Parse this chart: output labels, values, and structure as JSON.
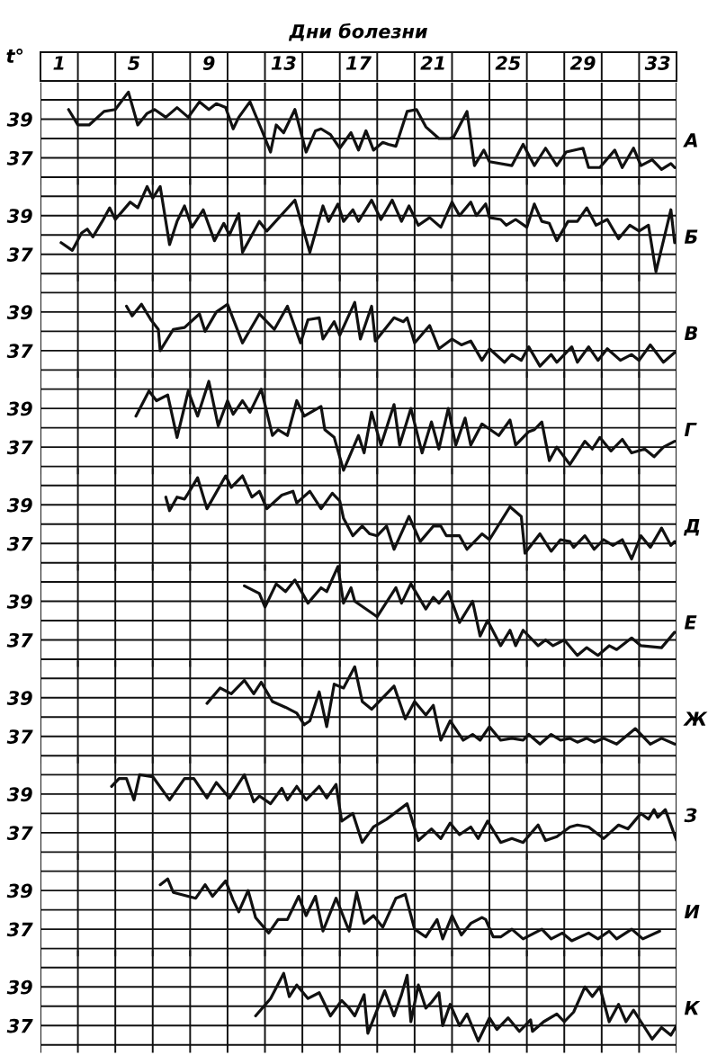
{
  "chart_data": [
    {
      "type": "line",
      "color": "#111111",
      "xlabel": "Дни болезни",
      "ylabel": "t°",
      "xticks": [
        {
          "value": 0,
          "label": null
        },
        1,
        {
          "value": 2,
          "label": null
        },
        {
          "value": 4,
          "label": null
        },
        5,
        {
          "value": 6,
          "label": null
        },
        {
          "value": 8,
          "label": null
        },
        9,
        {
          "value": 10,
          "label": null
        },
        {
          "value": 12,
          "label": null
        },
        13,
        {
          "value": 14,
          "label": null
        },
        {
          "value": 16,
          "label": null
        },
        17,
        {
          "value": 18,
          "label": null
        },
        {
          "value": 20,
          "label": null
        },
        21,
        {
          "value": 22,
          "label": null
        },
        {
          "value": 24,
          "label": null
        },
        25,
        {
          "value": 26,
          "label": null
        },
        {
          "value": 28,
          "label": null
        },
        29,
        {
          "value": 30,
          "label": null
        },
        {
          "value": 32,
          "label": null
        },
        33,
        {
          "value": 34,
          "label": null
        }
      ],
      "xlim": [
        0,
        34
      ],
      "ylim": [
        35.6,
        40.9
      ],
      "yticks": [
        {
          "value": 36,
          "label": null
        },
        37,
        {
          "value": 38,
          "label": null
        },
        39,
        {
          "value": 40,
          "label": null
        }
      ],
      "grid": true,
      "annotations": [
        "А"
      ],
      "x": [
        1.5,
        2.0,
        2.6,
        3.4,
        4.0,
        4.7,
        5.2,
        5.7,
        6.1,
        6.7,
        7.3,
        7.9,
        8.5,
        9.0,
        9.4,
        9.9,
        10.3,
        10.6,
        11.2,
        11.8,
        12.3,
        12.6,
        13.0,
        13.6,
        14.2,
        14.7,
        15.0,
        15.5,
        16.0,
        16.6,
        17.0,
        17.4,
        17.8,
        18.3,
        18.6,
        19.0,
        19.6,
        20.1,
        20.6,
        21.3,
        21.9,
        22.1,
        22.8,
        23.2,
        23.7,
        24.0,
        25.2,
        25.8,
        26.4,
        27.0,
        27.6,
        28.1,
        29.0,
        29.3,
        29.9,
        30.7,
        31.1,
        31.7,
        32.1,
        32.7,
        33.2,
        33.7,
        33.9
      ],
      "values": [
        39.5,
        38.7,
        38.7,
        39.4,
        39.5,
        40.4,
        38.7,
        39.3,
        39.5,
        39.1,
        39.6,
        39.1,
        39.9,
        39.5,
        39.8,
        39.6,
        38.5,
        39.1,
        39.9,
        38.5,
        37.3,
        38.7,
        38.3,
        39.5,
        37.3,
        38.4,
        38.5,
        38.2,
        37.5,
        38.3,
        37.4,
        38.4,
        37.4,
        37.8,
        37.7,
        37.6,
        39.4,
        39.5,
        38.6,
        38.0,
        38.0,
        38.1,
        39.4,
        36.6,
        37.4,
        36.8,
        36.6,
        37.7,
        36.6,
        37.5,
        36.6,
        37.3,
        37.5,
        36.5,
        36.5,
        37.4,
        36.5,
        37.5,
        36.6,
        36.9,
        36.4,
        36.7,
        36.5
      ]
    },
    {
      "type": "line",
      "color": "#111111",
      "xlim": [
        0,
        34
      ],
      "xticks": [
        0,
        2,
        4,
        6,
        8,
        10,
        12,
        14,
        16,
        18,
        20,
        22,
        24,
        26,
        28,
        30,
        32,
        34
      ],
      "ylim": [
        35.6,
        40.9
      ],
      "yticks": [
        {
          "value": 36,
          "label": null
        },
        37,
        {
          "value": 38,
          "label": null
        },
        39,
        {
          "value": 40,
          "label": null
        }
      ],
      "grid": true,
      "tick_labels": "y",
      "annotations": [
        "Б"
      ],
      "x": [
        1.1,
        1.7,
        2.2,
        2.5,
        2.8,
        3.3,
        3.7,
        4.0,
        4.8,
        5.2,
        5.7,
        6.0,
        6.4,
        6.9,
        7.3,
        7.7,
        8.1,
        8.7,
        9.3,
        9.8,
        10.1,
        10.6,
        10.8,
        11.7,
        12.1,
        13.6,
        14.4,
        15.1,
        15.4,
        15.9,
        16.2,
        16.7,
        17.0,
        17.7,
        18.2,
        18.8,
        19.3,
        19.7,
        20.2,
        20.8,
        21.4,
        22.0,
        22.4,
        23.0,
        23.3,
        23.8,
        24.0,
        24.6,
        24.9,
        25.4,
        26.0,
        26.4,
        26.8,
        27.2,
        27.6,
        28.2,
        28.7,
        29.2,
        29.7,
        30.3,
        30.9,
        31.5,
        32.0,
        32.5,
        32.9,
        33.7,
        33.9
      ],
      "values": [
        37.6,
        37.2,
        38.1,
        38.3,
        37.9,
        38.7,
        39.4,
        38.8,
        39.7,
        39.4,
        40.5,
        39.9,
        40.5,
        37.5,
        38.7,
        39.5,
        38.4,
        39.3,
        37.7,
        38.6,
        38.0,
        39.1,
        37.1,
        38.7,
        38.2,
        39.8,
        37.1,
        39.5,
        38.7,
        39.6,
        38.7,
        39.3,
        38.7,
        39.8,
        38.8,
        39.8,
        38.7,
        39.5,
        38.5,
        38.9,
        38.4,
        39.7,
        39.0,
        39.7,
        39.0,
        39.6,
        38.9,
        38.8,
        38.5,
        38.8,
        38.4,
        39.6,
        38.7,
        38.6,
        37.7,
        38.7,
        38.7,
        39.4,
        38.5,
        38.8,
        37.8,
        38.5,
        38.2,
        38.5,
        36.1,
        39.3,
        37.6
      ]
    },
    {
      "type": "line",
      "color": "#111111",
      "xlim": [
        0,
        34
      ],
      "xticks": [
        0,
        2,
        4,
        6,
        8,
        10,
        12,
        14,
        16,
        18,
        20,
        22,
        24,
        26,
        28,
        30,
        32,
        34
      ],
      "ylim": [
        35.6,
        40.9
      ],
      "yticks": [
        {
          "value": 36,
          "label": null
        },
        37,
        {
          "value": 38,
          "label": null
        },
        39,
        {
          "value": 40,
          "label": null
        }
      ],
      "grid": true,
      "tick_labels": "y",
      "annotations": [
        "В"
      ],
      "x": [
        4.6,
        4.9,
        5.4,
        5.9,
        6.3,
        6.4,
        7.1,
        7.7,
        8.5,
        8.8,
        9.4,
        10.0,
        10.8,
        11.7,
        12.5,
        13.2,
        13.9,
        14.3,
        14.9,
        15.1,
        15.7,
        16.0,
        16.8,
        17.1,
        17.7,
        17.9,
        18.9,
        19.4,
        19.6,
        20.0,
        20.8,
        21.3,
        22.0,
        22.5,
        23.0,
        23.6,
        24.0,
        24.8,
        25.2,
        25.7,
        26.1,
        26.7,
        27.3,
        27.6,
        28.4,
        28.7,
        29.3,
        29.8,
        30.3,
        31.0,
        31.6,
        32.0,
        32.6,
        33.3,
        33.9
      ],
      "values": [
        39.3,
        38.8,
        39.4,
        38.6,
        38.1,
        37.0,
        38.1,
        38.2,
        38.9,
        38.0,
        39.0,
        39.4,
        37.4,
        38.9,
        38.1,
        39.3,
        37.4,
        38.6,
        38.7,
        37.6,
        38.5,
        37.8,
        39.5,
        37.6,
        39.3,
        37.5,
        38.7,
        38.5,
        38.7,
        37.4,
        38.3,
        37.1,
        37.6,
        37.3,
        37.5,
        36.5,
        37.1,
        36.4,
        36.8,
        36.5,
        37.2,
        36.2,
        36.8,
        36.4,
        37.2,
        36.4,
        37.2,
        36.5,
        37.1,
        36.5,
        36.8,
        36.5,
        37.3,
        36.4,
        36.9
      ]
    },
    {
      "type": "line",
      "color": "#111111",
      "xlim": [
        0,
        34
      ],
      "xticks": [
        0,
        2,
        4,
        6,
        8,
        10,
        12,
        14,
        16,
        18,
        20,
        22,
        24,
        26,
        28,
        30,
        32,
        34
      ],
      "ylim": [
        35.6,
        40.9
      ],
      "yticks": [
        {
          "value": 36,
          "label": null
        },
        37,
        {
          "value": 38,
          "label": null
        },
        39,
        {
          "value": 40,
          "label": null
        }
      ],
      "grid": true,
      "tick_labels": "y",
      "annotations": [
        "Г"
      ],
      "x": [
        5.1,
        5.8,
        6.2,
        6.8,
        7.3,
        7.9,
        8.4,
        9.0,
        9.5,
        10.0,
        10.3,
        10.8,
        11.2,
        11.8,
        12.4,
        12.7,
        13.2,
        13.7,
        14.1,
        15.0,
        15.2,
        15.7,
        16.2,
        17.0,
        17.3,
        17.7,
        18.2,
        18.9,
        19.2,
        19.8,
        20.4,
        20.9,
        21.3,
        21.8,
        22.2,
        22.7,
        23.0,
        23.6,
        24.5,
        25.1,
        25.4,
        26.1,
        26.4,
        26.8,
        27.2,
        27.6,
        28.3,
        29.1,
        29.5,
        29.9,
        30.5,
        31.1,
        31.6,
        32.3,
        32.8,
        33.3,
        33.9
      ],
      "values": [
        38.6,
        39.9,
        39.4,
        39.7,
        37.5,
        39.9,
        38.6,
        40.4,
        38.1,
        39.4,
        38.7,
        39.4,
        38.8,
        40.0,
        37.6,
        37.9,
        37.6,
        39.4,
        38.6,
        39.1,
        37.9,
        37.5,
        35.8,
        37.6,
        36.7,
        38.8,
        37.1,
        39.2,
        37.1,
        39.0,
        36.7,
        38.3,
        36.9,
        39.0,
        37.1,
        38.5,
        37.1,
        38.2,
        37.6,
        38.4,
        37.1,
        37.8,
        37.9,
        38.3,
        36.3,
        37.0,
        36.1,
        37.3,
        36.9,
        37.5,
        36.8,
        37.4,
        36.7,
        36.9,
        36.5,
        37.0,
        37.3
      ]
    },
    {
      "type": "line",
      "color": "#111111",
      "xlim": [
        0,
        34
      ],
      "xticks": [
        0,
        2,
        4,
        6,
        8,
        10,
        12,
        14,
        16,
        18,
        20,
        22,
        24,
        26,
        28,
        30,
        32,
        34
      ],
      "ylim": [
        35.6,
        40.9
      ],
      "yticks": [
        {
          "value": 36,
          "label": null
        },
        37,
        {
          "value": 38,
          "label": null
        },
        39,
        {
          "value": 40,
          "label": null
        }
      ],
      "grid": true,
      "tick_labels": "y",
      "annotations": [
        "Д"
      ],
      "x": [
        6.7,
        6.9,
        7.3,
        7.7,
        7.9,
        8.4,
        8.9,
        9.9,
        10.2,
        10.8,
        11.3,
        11.7,
        12.1,
        12.9,
        13.5,
        13.7,
        14.4,
        15.0,
        15.6,
        16.0,
        16.2,
        16.7,
        17.2,
        17.6,
        18.0,
        18.5,
        18.9,
        19.7,
        20.3,
        21.0,
        21.4,
        21.7,
        22.4,
        22.8,
        23.6,
        24.0,
        25.1,
        25.7,
        25.9,
        26.7,
        27.3,
        27.8,
        28.3,
        28.5,
        29.1,
        29.6,
        30.1,
        30.6,
        31.1,
        31.6,
        32.1,
        32.6,
        33.2,
        33.7,
        33.9
      ],
      "values": [
        39.4,
        38.7,
        39.4,
        39.3,
        39.6,
        40.4,
        38.8,
        40.5,
        39.9,
        40.5,
        39.4,
        39.7,
        38.8,
        39.5,
        39.7,
        39.1,
        39.7,
        38.8,
        39.6,
        39.2,
        38.3,
        37.4,
        37.9,
        37.5,
        37.4,
        37.9,
        36.7,
        38.4,
        37.1,
        37.9,
        37.9,
        37.4,
        37.4,
        36.7,
        37.5,
        37.2,
        38.9,
        38.4,
        36.5,
        37.5,
        36.6,
        37.2,
        37.1,
        36.8,
        37.4,
        36.7,
        37.2,
        36.9,
        37.2,
        36.2,
        37.4,
        36.8,
        37.8,
        36.9,
        37.1
      ]
    },
    {
      "type": "line",
      "color": "#111111",
      "xlim": [
        0,
        34
      ],
      "xticks": [
        0,
        2,
        4,
        6,
        8,
        10,
        12,
        14,
        16,
        18,
        20,
        22,
        24,
        26,
        28,
        30,
        32,
        34
      ],
      "ylim": [
        35.6,
        40.9
      ],
      "yticks": [
        {
          "value": 36,
          "label": null
        },
        37,
        {
          "value": 38,
          "label": null
        },
        39,
        {
          "value": 40,
          "label": null
        }
      ],
      "grid": true,
      "tick_labels": "y",
      "annotations": [
        "Е"
      ],
      "x": [
        10.9,
        11.7,
        12.0,
        12.6,
        13.1,
        13.6,
        14.3,
        15.0,
        15.3,
        15.9,
        16.2,
        16.6,
        16.8,
        18.0,
        19.0,
        19.3,
        19.8,
        20.6,
        21.0,
        21.3,
        21.8,
        22.4,
        23.1,
        23.5,
        23.9,
        24.6,
        25.1,
        25.4,
        25.8,
        26.6,
        27.0,
        27.4,
        28.0,
        28.7,
        29.2,
        29.8,
        30.4,
        30.8,
        31.6,
        32.1,
        33.2,
        33.9
      ],
      "values": [
        39.8,
        39.4,
        38.7,
        39.9,
        39.5,
        40.1,
        38.9,
        39.7,
        39.5,
        40.8,
        38.9,
        39.7,
        39.0,
        38.2,
        39.7,
        38.9,
        39.9,
        38.6,
        39.2,
        38.9,
        39.5,
        37.9,
        39.0,
        37.2,
        38.0,
        36.7,
        37.5,
        36.7,
        37.5,
        36.7,
        37.0,
        36.7,
        37.0,
        36.2,
        36.6,
        36.2,
        36.7,
        36.5,
        37.1,
        36.7,
        36.6,
        37.4
      ]
    },
    {
      "type": "line",
      "color": "#111111",
      "xlim": [
        0,
        34
      ],
      "xticks": [
        0,
        2,
        4,
        6,
        8,
        10,
        12,
        14,
        16,
        18,
        20,
        22,
        24,
        26,
        28,
        30,
        32,
        34
      ],
      "ylim": [
        35.6,
        40.9
      ],
      "yticks": [
        {
          "value": 36,
          "label": null
        },
        37,
        {
          "value": 38,
          "label": null
        },
        39,
        {
          "value": 40,
          "label": null
        }
      ],
      "grid": true,
      "tick_labels": "y",
      "annotations": [
        "Ж"
      ],
      "x": [
        8.9,
        9.6,
        10.2,
        10.9,
        11.4,
        11.8,
        12.4,
        13.1,
        13.7,
        14.1,
        14.4,
        14.9,
        15.3,
        15.7,
        16.2,
        16.8,
        17.2,
        17.7,
        18.9,
        19.5,
        20.0,
        20.6,
        21.0,
        21.4,
        21.9,
        22.6,
        23.1,
        23.5,
        24.0,
        24.6,
        25.2,
        25.8,
        26.1,
        26.7,
        27.3,
        27.8,
        28.3,
        28.7,
        29.2,
        29.6,
        30.1,
        30.8,
        31.8,
        32.6,
        33.2,
        33.9
      ],
      "values": [
        38.7,
        39.5,
        39.2,
        39.9,
        39.2,
        39.8,
        38.8,
        38.5,
        38.2,
        37.6,
        37.8,
        39.3,
        37.5,
        39.7,
        39.5,
        40.6,
        38.8,
        38.4,
        39.6,
        37.9,
        38.8,
        38.1,
        38.6,
        36.8,
        37.8,
        36.8,
        37.1,
        36.8,
        37.5,
        36.8,
        36.9,
        36.8,
        37.1,
        36.6,
        37.1,
        36.8,
        36.9,
        36.7,
        36.9,
        36.7,
        36.9,
        36.6,
        37.4,
        36.6,
        36.9,
        36.6
      ]
    },
    {
      "type": "line",
      "color": "#111111",
      "xlim": [
        0,
        34
      ],
      "xticks": [
        0,
        2,
        4,
        6,
        8,
        10,
        12,
        14,
        16,
        18,
        20,
        22,
        24,
        26,
        28,
        30,
        32,
        34
      ],
      "ylim": [
        35.6,
        40.9
      ],
      "yticks": [
        {
          "value": 36,
          "label": null
        },
        37,
        {
          "value": 38,
          "label": null
        },
        39,
        {
          "value": 40,
          "label": null
        }
      ],
      "grid": true,
      "tick_labels": "y",
      "annotations": [
        "З"
      ],
      "x": [
        3.8,
        4.2,
        4.6,
        5.0,
        5.3,
        6.0,
        6.9,
        7.7,
        8.2,
        8.9,
        9.4,
        10.1,
        10.9,
        11.4,
        11.7,
        12.3,
        12.9,
        13.2,
        13.7,
        14.2,
        14.9,
        15.3,
        15.8,
        16.1,
        16.7,
        17.2,
        17.8,
        18.5,
        19.6,
        20.2,
        20.9,
        21.4,
        21.9,
        22.4,
        23.0,
        23.4,
        23.9,
        24.6,
        25.2,
        25.8,
        26.6,
        27.0,
        27.6,
        28.3,
        28.7,
        29.3,
        30.1,
        30.9,
        31.4,
        32.1,
        32.5,
        32.8,
        33.0,
        33.4,
        34.0
      ],
      "values": [
        39.4,
        39.8,
        39.8,
        38.7,
        40.0,
        39.9,
        38.7,
        39.8,
        39.8,
        38.8,
        39.6,
        38.8,
        40.0,
        38.6,
        38.9,
        38.5,
        39.3,
        38.7,
        39.4,
        38.7,
        39.4,
        38.8,
        39.5,
        37.6,
        38.0,
        36.5,
        37.3,
        37.7,
        38.5,
        36.6,
        37.2,
        36.7,
        37.5,
        36.9,
        37.3,
        36.7,
        37.6,
        36.5,
        36.7,
        36.5,
        37.4,
        36.6,
        36.8,
        37.3,
        37.4,
        37.3,
        36.7,
        37.4,
        37.2,
        38.0,
        37.7,
        38.2,
        37.8,
        38.2,
        36.6
      ]
    },
    {
      "type": "line",
      "color": "#111111",
      "xlim": [
        0,
        34
      ],
      "xticks": [
        0,
        2,
        4,
        6,
        8,
        10,
        12,
        14,
        16,
        18,
        20,
        22,
        24,
        26,
        28,
        30,
        32,
        34
      ],
      "ylim": [
        35.6,
        40.9
      ],
      "yticks": [
        {
          "value": 36,
          "label": null
        },
        37,
        {
          "value": 38,
          "label": null
        },
        39,
        {
          "value": 40,
          "label": null
        }
      ],
      "grid": true,
      "tick_labels": "y",
      "annotations": [
        "И"
      ],
      "x": [
        6.4,
        6.8,
        7.1,
        8.3,
        8.8,
        9.2,
        9.9,
        10.3,
        10.6,
        11.1,
        11.5,
        12.2,
        12.7,
        13.2,
        13.8,
        14.2,
        14.7,
        15.1,
        15.8,
        16.5,
        16.9,
        17.3,
        17.8,
        18.3,
        19.0,
        19.5,
        20.0,
        20.6,
        21.2,
        21.5,
        22.0,
        22.5,
        23.0,
        23.6,
        23.8,
        24.2,
        24.6,
        25.2,
        25.8,
        26.8,
        27.3,
        27.9,
        28.4,
        29.3,
        29.8,
        30.4,
        30.8,
        31.6,
        32.2,
        33.1
      ],
      "values": [
        39.3,
        39.6,
        38.9,
        38.6,
        39.3,
        38.7,
        39.5,
        38.5,
        37.9,
        39.0,
        37.6,
        36.8,
        37.5,
        37.5,
        38.7,
        37.7,
        38.7,
        36.9,
        38.6,
        36.9,
        38.9,
        37.3,
        37.7,
        37.1,
        38.6,
        38.8,
        37.0,
        36.6,
        37.5,
        36.5,
        37.7,
        36.7,
        37.3,
        37.6,
        37.5,
        36.6,
        36.6,
        37.0,
        36.5,
        37.0,
        36.5,
        36.8,
        36.4,
        36.8,
        36.5,
        36.9,
        36.5,
        37.0,
        36.5,
        36.9
      ]
    },
    {
      "type": "line",
      "color": "#111111",
      "xlim": [
        0,
        34
      ],
      "xticks": [
        0,
        2,
        4,
        6,
        8,
        10,
        12,
        14,
        16,
        18,
        20,
        22,
        24,
        26,
        28,
        30,
        32,
        34
      ],
      "ylim": [
        35.6,
        40.9
      ],
      "yticks": [
        {
          "value": 36,
          "label": null
        },
        37,
        {
          "value": 38,
          "label": null
        },
        39,
        {
          "value": 40,
          "label": null
        }
      ],
      "grid": true,
      "tick_labels": "y",
      "annotations": [
        "К"
      ],
      "x": [
        11.5,
        12.3,
        13.0,
        13.3,
        13.7,
        14.3,
        14.9,
        15.5,
        16.1,
        16.5,
        16.8,
        17.3,
        17.5,
        18.4,
        18.9,
        19.3,
        19.6,
        19.8,
        20.2,
        20.6,
        20.9,
        21.3,
        21.5,
        21.9,
        22.4,
        22.8,
        23.4,
        24.0,
        24.4,
        25.0,
        25.6,
        26.2,
        26.3,
        26.9,
        27.6,
        28.0,
        28.5,
        29.1,
        29.5,
        29.9,
        30.4,
        30.9,
        31.3,
        31.7,
        32.1,
        32.7,
        33.2,
        33.7,
        34.0
      ],
      "values": [
        37.5,
        38.4,
        39.7,
        38.5,
        39.1,
        38.4,
        38.7,
        37.5,
        38.3,
        37.9,
        37.5,
        38.6,
        36.6,
        38.8,
        37.5,
        38.6,
        39.6,
        37.2,
        39.1,
        37.9,
        38.2,
        38.7,
        37.0,
        38.1,
        37.0,
        37.6,
        36.2,
        37.4,
        36.8,
        37.4,
        36.7,
        37.3,
        36.7,
        37.2,
        37.6,
        37.2,
        37.7,
        39.0,
        38.5,
        39.0,
        37.2,
        38.1,
        37.2,
        37.8,
        37.2,
        36.3,
        36.9,
        36.5,
        37.0
      ]
    }
  ]
}
